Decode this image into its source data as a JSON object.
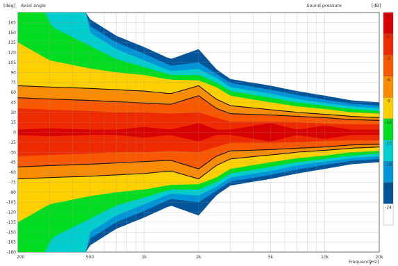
{
  "header": {
    "left_unit": "[deg]",
    "left_title": "Axial angle",
    "right_title": "Sound pressure",
    "right_unit": "[dB]"
  },
  "footer": {
    "x_title": "Frequency",
    "x_unit": "[Hz]"
  },
  "chart_data": {
    "type": "heatmap",
    "title": "",
    "xlabel": "Frequency [Hz]",
    "ylabel": "Axial angle [deg]",
    "x_scale": "log",
    "xlim": [
      200,
      20000
    ],
    "ylim": [
      -180,
      180
    ],
    "x_ticks": [
      {
        "value": 200,
        "label": "200"
      },
      {
        "value": 500,
        "label": "500"
      },
      {
        "value": 1000,
        "label": "1k"
      },
      {
        "value": 2000,
        "label": "2k"
      },
      {
        "value": 5000,
        "label": "5k"
      },
      {
        "value": 10000,
        "label": "10k"
      },
      {
        "value": 20000,
        "label": "20k"
      }
    ],
    "y_ticks": [
      165,
      150,
      135,
      120,
      105,
      90,
      75,
      60,
      45,
      30,
      15,
      0,
      -15,
      -30,
      -45,
      -60,
      -75,
      -90,
      -105,
      -120,
      -135,
      -150,
      -165,
      -180
    ],
    "grid": true,
    "colorbar": {
      "unit": "dB",
      "placement": "right",
      "labels": [
        "3",
        "0",
        "-3",
        "-6",
        "-9",
        "-12",
        "-15",
        "-18",
        "-21",
        "-24"
      ],
      "colors": [
        "#d90000",
        "#ee2a00",
        "#f75800",
        "#fb8c00",
        "#ffd000",
        "#00dd20",
        "#00cece",
        "#0095d8",
        "#00559a",
        "#ffffff"
      ]
    },
    "bands": [
      {
        "level": -24,
        "color": "#ffffff",
        "samples": [
          [
            200,
            0
          ],
          [
            300,
            0
          ],
          [
            500,
            0
          ],
          [
            1000,
            0
          ],
          [
            2000,
            0
          ],
          [
            5000,
            0
          ],
          [
            10000,
            0
          ],
          [
            20000,
            0
          ]
        ]
      },
      {
        "level": -21,
        "color": "#00559a",
        "samples": [
          [
            200,
            999
          ],
          [
            300,
            999
          ],
          [
            500,
            170
          ],
          [
            700,
            145
          ],
          [
            1000,
            128
          ],
          [
            1400,
            110
          ],
          [
            2000,
            125
          ],
          [
            2500,
            95
          ],
          [
            3000,
            80
          ],
          [
            5000,
            70
          ],
          [
            7000,
            62
          ],
          [
            10000,
            55
          ],
          [
            14000,
            48
          ],
          [
            20000,
            45
          ]
        ]
      },
      {
        "level": -18,
        "color": "#0095d8",
        "samples": [
          [
            200,
            999
          ],
          [
            300,
            999
          ],
          [
            500,
            160
          ],
          [
            700,
            135
          ],
          [
            1000,
            118
          ],
          [
            1400,
            100
          ],
          [
            2000,
            105
          ],
          [
            2500,
            88
          ],
          [
            3000,
            74
          ],
          [
            5000,
            64
          ],
          [
            7000,
            56
          ],
          [
            10000,
            49
          ],
          [
            14000,
            43
          ],
          [
            20000,
            40
          ]
        ]
      },
      {
        "level": -15,
        "color": "#00cece",
        "samples": [
          [
            200,
            999
          ],
          [
            300,
            999
          ],
          [
            500,
            150
          ],
          [
            700,
            125
          ],
          [
            1000,
            108
          ],
          [
            1400,
            92
          ],
          [
            2000,
            95
          ],
          [
            2500,
            82
          ],
          [
            3000,
            68
          ],
          [
            5000,
            58
          ],
          [
            7000,
            50
          ],
          [
            10000,
            44
          ],
          [
            14000,
            39
          ],
          [
            20000,
            36
          ]
        ]
      },
      {
        "level": -12,
        "color": "#00dd20",
        "samples": [
          [
            200,
            999
          ],
          [
            300,
            160
          ],
          [
            500,
            130
          ],
          [
            700,
            110
          ],
          [
            1000,
            98
          ],
          [
            1400,
            86
          ],
          [
            2000,
            86
          ],
          [
            2500,
            75
          ],
          [
            3000,
            62
          ],
          [
            5000,
            52
          ],
          [
            7000,
            45
          ],
          [
            10000,
            40
          ],
          [
            14000,
            35
          ],
          [
            20000,
            32
          ]
        ]
      },
      {
        "level": -9,
        "color": "#ffd000",
        "samples": [
          [
            200,
            135
          ],
          [
            300,
            108
          ],
          [
            500,
            96
          ],
          [
            700,
            90
          ],
          [
            1000,
            86
          ],
          [
            1400,
            79
          ],
          [
            2000,
            78
          ],
          [
            2500,
            68
          ],
          [
            3000,
            55
          ],
          [
            5000,
            45
          ],
          [
            7000,
            39
          ],
          [
            10000,
            35
          ],
          [
            14000,
            30
          ],
          [
            20000,
            28
          ]
        ]
      },
      {
        "level": -6,
        "color": "#fb8c00",
        "samples": [
          [
            200,
            70
          ],
          [
            300,
            68
          ],
          [
            500,
            66
          ],
          [
            700,
            64
          ],
          [
            1000,
            62
          ],
          [
            1400,
            58
          ],
          [
            2000,
            70
          ],
          [
            2500,
            50
          ],
          [
            3000,
            40
          ],
          [
            5000,
            34
          ],
          [
            7000,
            30
          ],
          [
            10000,
            27
          ],
          [
            14000,
            24
          ],
          [
            20000,
            22
          ]
        ]
      },
      {
        "level": -3,
        "color": "#f75800",
        "samples": [
          [
            200,
            52
          ],
          [
            300,
            50
          ],
          [
            500,
            48
          ],
          [
            700,
            46
          ],
          [
            1000,
            44
          ],
          [
            1400,
            42
          ],
          [
            2000,
            55
          ],
          [
            2500,
            36
          ],
          [
            3000,
            28
          ],
          [
            5000,
            26
          ],
          [
            7000,
            24
          ],
          [
            10000,
            22
          ],
          [
            14000,
            19
          ],
          [
            20000,
            18
          ]
        ]
      },
      {
        "level": 0,
        "color": "#ee2a00",
        "samples": [
          [
            200,
            36
          ],
          [
            300,
            34
          ],
          [
            500,
            32
          ],
          [
            700,
            30
          ],
          [
            1000,
            30
          ],
          [
            1400,
            28
          ],
          [
            2000,
            30
          ],
          [
            2500,
            22
          ],
          [
            3000,
            16
          ],
          [
            5000,
            16
          ],
          [
            7000,
            15
          ],
          [
            10000,
            13
          ],
          [
            14000,
            12
          ],
          [
            20000,
            12
          ]
        ]
      },
      {
        "level": 3,
        "color": "#d90000",
        "samples": [
          [
            200,
            4
          ],
          [
            300,
            6
          ],
          [
            500,
            4
          ],
          [
            700,
            4
          ],
          [
            1000,
            8
          ],
          [
            1400,
            4
          ],
          [
            2000,
            14
          ],
          [
            2500,
            4
          ],
          [
            3000,
            4
          ],
          [
            5000,
            14
          ],
          [
            7000,
            4
          ],
          [
            10000,
            10
          ],
          [
            14000,
            4
          ],
          [
            20000,
            4
          ]
        ]
      }
    ],
    "contour_lines": [
      {
        "level": -3,
        "samples": [
          [
            200,
            52
          ],
          [
            300,
            50
          ],
          [
            500,
            48
          ],
          [
            700,
            46
          ],
          [
            1000,
            44
          ],
          [
            1400,
            42
          ],
          [
            2000,
            55
          ],
          [
            2500,
            36
          ],
          [
            3000,
            28
          ],
          [
            5000,
            26
          ],
          [
            7000,
            24
          ],
          [
            10000,
            22
          ],
          [
            14000,
            19
          ],
          [
            20000,
            18
          ]
        ]
      },
      {
        "level": -6,
        "samples": [
          [
            200,
            70
          ],
          [
            300,
            68
          ],
          [
            500,
            66
          ],
          [
            700,
            64
          ],
          [
            1000,
            62
          ],
          [
            1400,
            58
          ],
          [
            2000,
            70
          ],
          [
            2500,
            50
          ],
          [
            3000,
            40
          ],
          [
            5000,
            34
          ],
          [
            7000,
            30
          ],
          [
            10000,
            27
          ],
          [
            14000,
            24
          ],
          [
            20000,
            22
          ]
        ]
      }
    ]
  }
}
